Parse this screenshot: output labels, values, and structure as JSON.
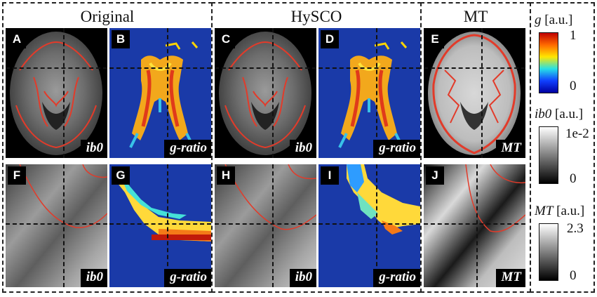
{
  "groups": [
    {
      "title": "Original"
    },
    {
      "title": "HySCO"
    },
    {
      "title": "MT"
    }
  ],
  "panels": [
    {
      "letter": "A",
      "label": "ib0"
    },
    {
      "letter": "B",
      "label": "g-ratio"
    },
    {
      "letter": "C",
      "label": "ib0"
    },
    {
      "letter": "D",
      "label": "g-ratio"
    },
    {
      "letter": "E",
      "label": "MT"
    },
    {
      "letter": "F",
      "label": "ib0"
    },
    {
      "letter": "G",
      "label": "g-ratio"
    },
    {
      "letter": "H",
      "label": "ib0"
    },
    {
      "letter": "I",
      "label": "g-ratio"
    },
    {
      "letter": "J",
      "label": "MT"
    }
  ],
  "colorbars": [
    {
      "var": "g",
      "unit": "[a.u.]",
      "max": "1",
      "min": "0",
      "colors": [
        "#c00000",
        "#ff6a00",
        "#ffe600",
        "#27e0e6",
        "#1040ff",
        "#0000a0"
      ]
    },
    {
      "var": "ib0",
      "unit": "[a.u.]",
      "max": "1e-2",
      "min": "0",
      "colors": [
        "#ffffff",
        "#000000"
      ]
    },
    {
      "var": "MT",
      "unit": "[a.u.]",
      "max": "2.3",
      "min": "0",
      "colors": [
        "#ffffff",
        "#000000"
      ]
    }
  ]
}
